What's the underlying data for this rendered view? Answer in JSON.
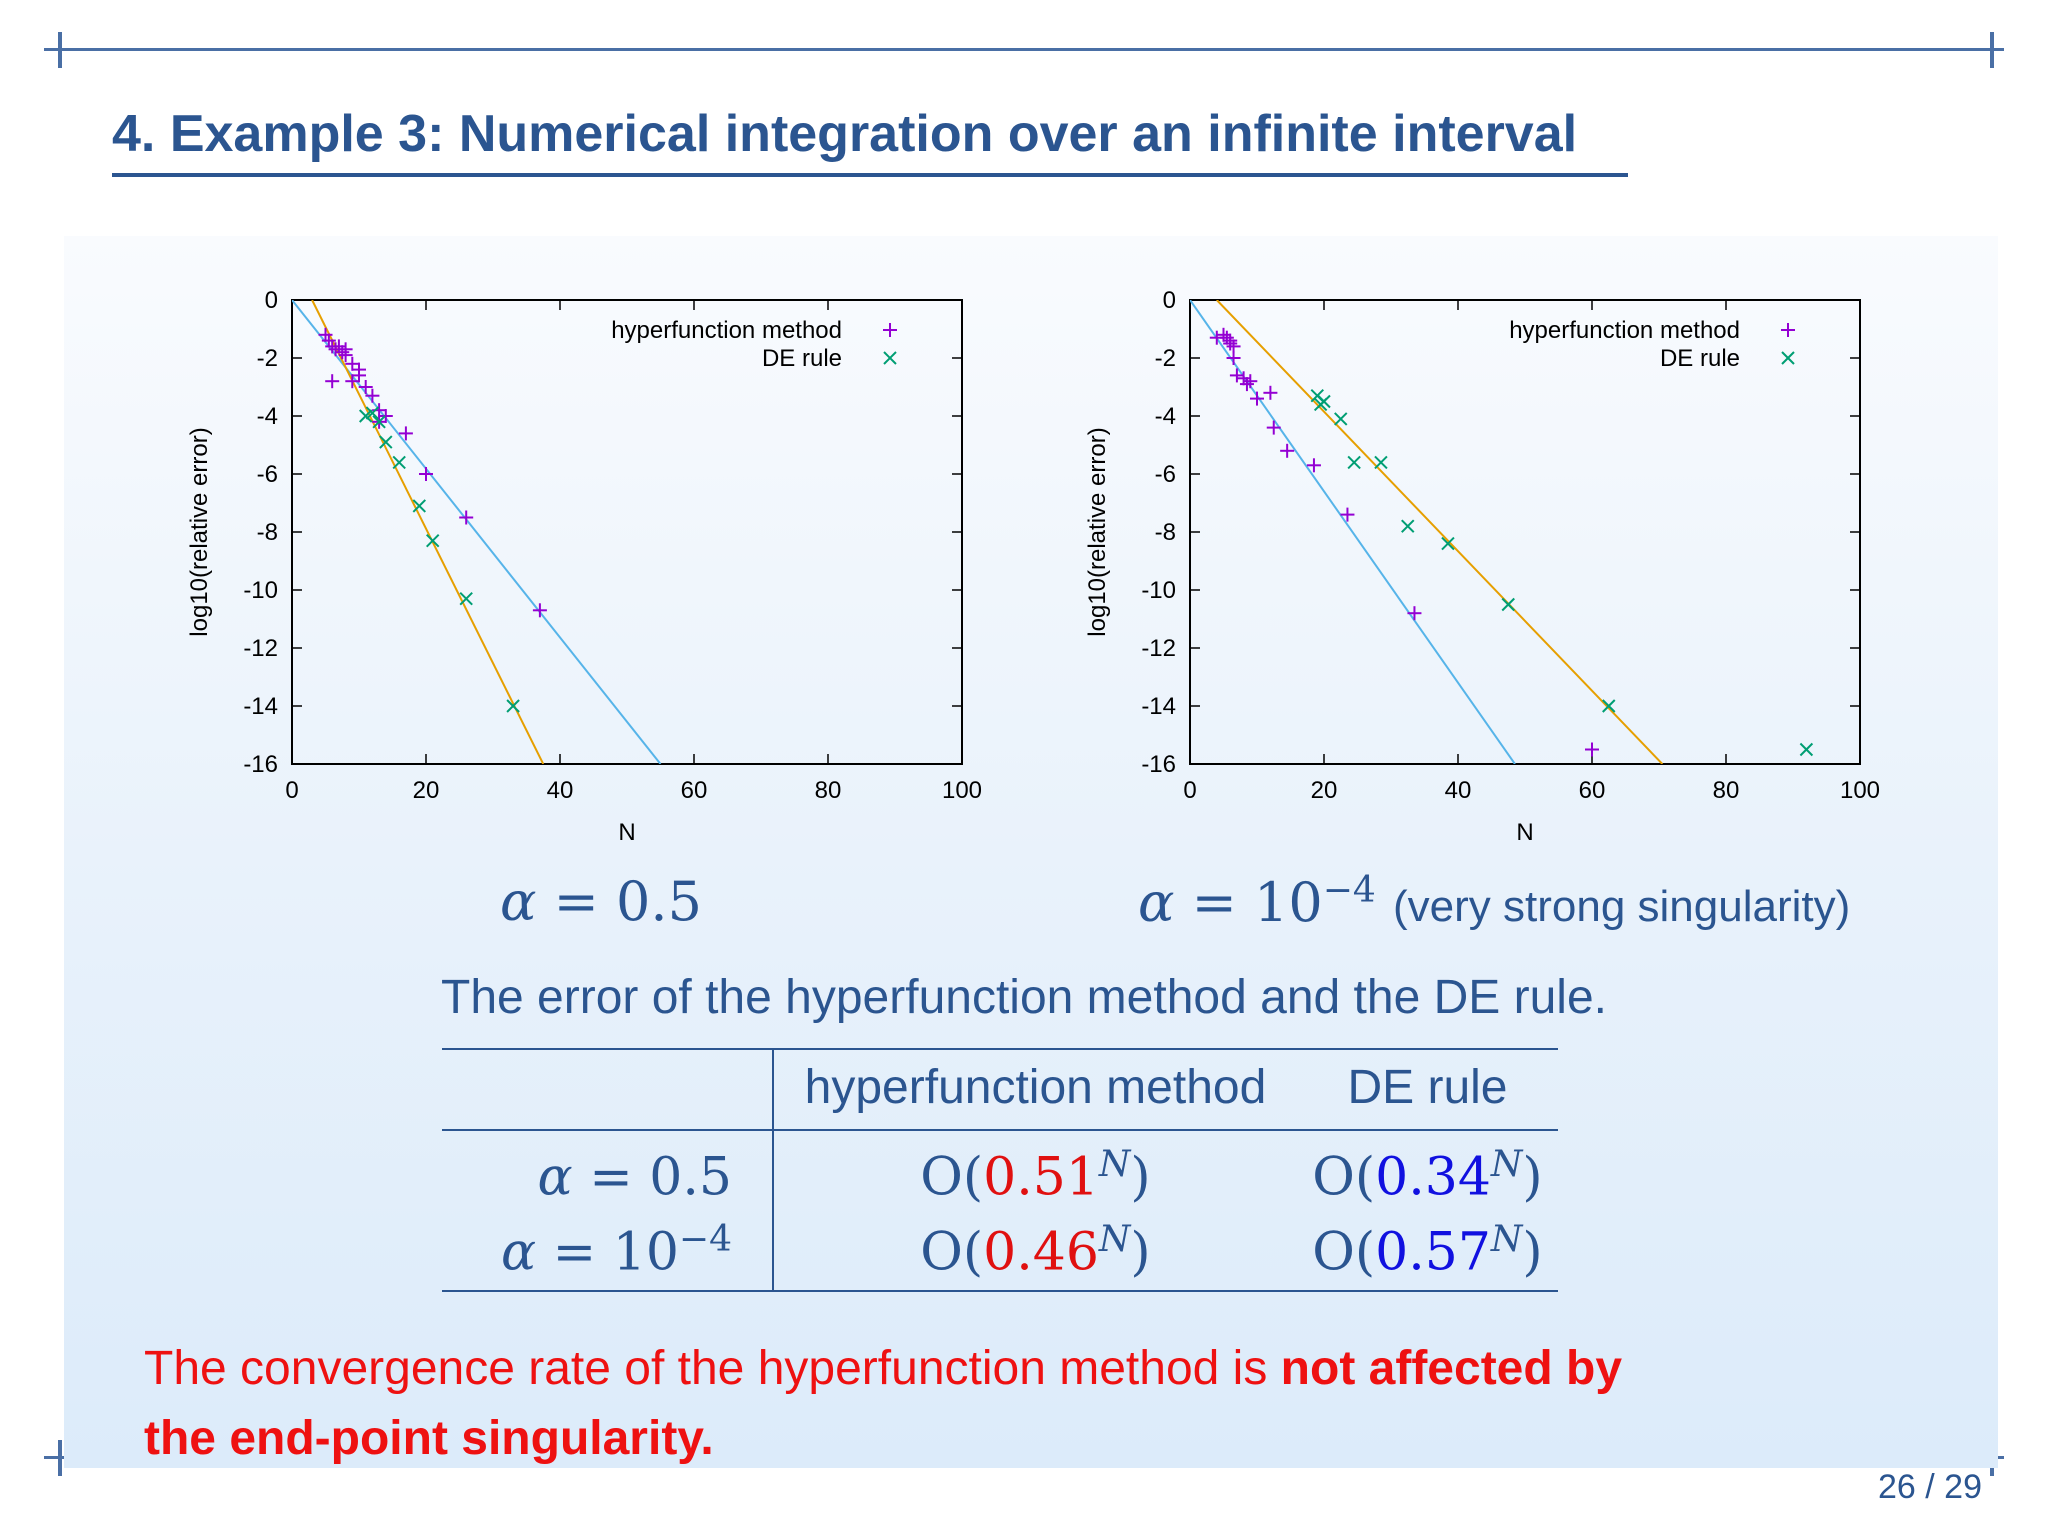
{
  "title": "4. Example 3: Numerical integration over an infinite interval",
  "colors": {
    "hyper": "#9400d3",
    "de": "#009e73",
    "fit_hyper": "#56b4e9",
    "fit_de": "#e69f00",
    "theme": "#2b5590",
    "highlight": "#ee1111",
    "blue_value": "#1010e0"
  },
  "chart_data": [
    {
      "type": "scatter",
      "xlabel": "N",
      "ylabel": "log10(relative error)",
      "xlim": [
        0,
        100
      ],
      "ylim": [
        -16,
        0
      ],
      "x_ticks": [
        "0",
        "20",
        "40",
        "60",
        "80",
        "100"
      ],
      "y_ticks": [
        "0",
        "-2",
        "-4",
        "-6",
        "-8",
        "-10",
        "-12",
        "-14",
        "-16"
      ],
      "legend_position": "top-right",
      "series": [
        {
          "name": "hyperfunction method",
          "marker": "plus",
          "points": [
            [
              5,
              -1.2
            ],
            [
              5.5,
              -1.4
            ],
            [
              6,
              -1.6
            ],
            [
              6,
              -2.8
            ],
            [
              6.5,
              -1.7
            ],
            [
              7,
              -1.6
            ],
            [
              7.5,
              -1.8
            ],
            [
              8,
              -1.9
            ],
            [
              8,
              -1.7
            ],
            [
              9,
              -2.2
            ],
            [
              9,
              -2.8
            ],
            [
              10,
              -2.4
            ],
            [
              10,
              -2.6
            ],
            [
              11,
              -3.0
            ],
            [
              12,
              -3.3
            ],
            [
              13,
              -3.8
            ],
            [
              13,
              -4.2
            ],
            [
              14,
              -4.0
            ],
            [
              17,
              -4.6
            ],
            [
              20,
              -6.0
            ],
            [
              26,
              -7.5
            ],
            [
              37,
              -10.7
            ]
          ]
        },
        {
          "name": "DE rule",
          "marker": "cross",
          "points": [
            [
              11,
              -4.0
            ],
            [
              12,
              -3.9
            ],
            [
              13,
              -4.2
            ],
            [
              14,
              -4.9
            ],
            [
              16,
              -5.6
            ],
            [
              19,
              -7.1
            ],
            [
              21,
              -8.3
            ],
            [
              26,
              -10.3
            ],
            [
              33,
              -14.0
            ]
          ]
        }
      ],
      "fit_lines": [
        {
          "series": "hyperfunction method",
          "x": [
            0,
            55
          ],
          "y": [
            0,
            -16
          ]
        },
        {
          "series": "DE rule",
          "x": [
            3,
            37.5
          ],
          "y": [
            0,
            -16
          ]
        }
      ]
    },
    {
      "type": "scatter",
      "xlabel": "N",
      "ylabel": "log10(relative error)",
      "xlim": [
        0,
        100
      ],
      "ylim": [
        -16,
        0
      ],
      "x_ticks": [
        "0",
        "20",
        "40",
        "60",
        "80",
        "100"
      ],
      "y_ticks": [
        "0",
        "-2",
        "-4",
        "-6",
        "-8",
        "-10",
        "-12",
        "-14",
        "-16"
      ],
      "legend_position": "top-right",
      "series": [
        {
          "name": "hyperfunction method",
          "marker": "plus",
          "points": [
            [
              4,
              -1.3
            ],
            [
              5,
              -1.2
            ],
            [
              5.5,
              -1.3
            ],
            [
              6,
              -1.4
            ],
            [
              6,
              -1.5
            ],
            [
              6.5,
              -1.6
            ],
            [
              6.5,
              -2.0
            ],
            [
              7,
              -2.6
            ],
            [
              8,
              -2.7
            ],
            [
              8.5,
              -2.9
            ],
            [
              9,
              -2.8
            ],
            [
              10,
              -3.4
            ],
            [
              12,
              -3.2
            ],
            [
              12.5,
              -4.4
            ],
            [
              14.5,
              -5.2
            ],
            [
              18.5,
              -5.7
            ],
            [
              23.5,
              -7.4
            ],
            [
              33.5,
              -10.8
            ],
            [
              60,
              -15.5
            ]
          ]
        },
        {
          "name": "DE rule",
          "marker": "cross",
          "points": [
            [
              19,
              -3.3
            ],
            [
              19.5,
              -3.6
            ],
            [
              20,
              -3.5
            ],
            [
              22.5,
              -4.1
            ],
            [
              24.5,
              -5.6
            ],
            [
              28.5,
              -5.6
            ],
            [
              32.5,
              -7.8
            ],
            [
              38.5,
              -8.4
            ],
            [
              47.5,
              -10.5
            ],
            [
              62.5,
              -14.0
            ],
            [
              92,
              -15.5
            ]
          ]
        }
      ],
      "fit_lines": [
        {
          "series": "hyperfunction method",
          "x": [
            0,
            48.5
          ],
          "y": [
            0,
            -16
          ]
        },
        {
          "series": "DE rule",
          "x": [
            4,
            70.5
          ],
          "y": [
            0,
            -16
          ]
        }
      ]
    }
  ],
  "alpha_left": {
    "symbol": "α",
    "eq": " = 0.5"
  },
  "alpha_right": {
    "symbol": "α",
    "eq": " = 10",
    "exp": "−4",
    "note": "(very strong singularity)"
  },
  "caption": "The error of the hyperfunction method and the DE rule.",
  "table": {
    "headers": [
      "",
      "hyperfunction method",
      "DE rule"
    ],
    "rows": [
      {
        "label_symbol": "α",
        "label_eq": " = 0.5",
        "label_exp": "",
        "hyper_base": "0.51",
        "de_base": "0.34"
      },
      {
        "label_symbol": "α",
        "label_eq": " = 10",
        "label_exp": "−4",
        "hyper_base": "0.46",
        "de_base": "0.57"
      }
    ],
    "order_prefix": "O(",
    "order_suffix": ")",
    "exponent": "N"
  },
  "conclusion": {
    "normal": "The convergence rate of the hyperfunction method is ",
    "bold": "not affected by the end-point singularity."
  },
  "page_number": "26 / 29"
}
